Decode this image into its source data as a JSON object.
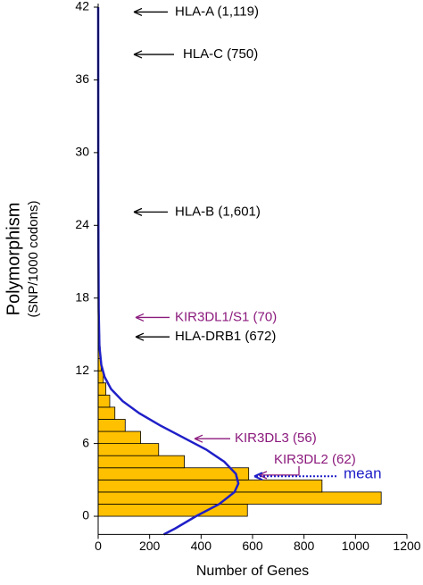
{
  "chart_data": {
    "type": "histogram",
    "orientation": "horizontal",
    "ylabel": "Polymorphism",
    "ylabel_sub": "(SNP/1000 codons)",
    "xlabel": "Number of Genes",
    "bins": [
      0,
      1,
      2,
      3,
      4,
      5,
      6,
      7,
      8,
      9,
      10,
      11,
      12,
      13,
      14,
      15,
      16,
      17,
      18,
      19,
      20,
      21,
      22,
      23,
      24,
      25,
      26,
      27
    ],
    "counts": [
      580,
      1100,
      870,
      585,
      335,
      235,
      165,
      105,
      65,
      45,
      30,
      20,
      12,
      8,
      6,
      5,
      4,
      3,
      3,
      2,
      2,
      2,
      1,
      1,
      1,
      1,
      1
    ],
    "color": "#ffc000",
    "edgecolor": "#000000",
    "curve": {
      "color": "#1f1fc8",
      "y": [
        -1.5,
        -1,
        0,
        1,
        2,
        2.7,
        3.5,
        4.5,
        5.5,
        6.5,
        7.5,
        8.5,
        9.5,
        10.5,
        11.5,
        12.5,
        14,
        17,
        22,
        30,
        42
      ],
      "x": [
        255,
        300,
        380,
        470,
        530,
        545,
        535,
        490,
        420,
        330,
        240,
        160,
        95,
        50,
        25,
        12,
        5,
        2,
        1,
        0.5,
        0
      ]
    },
    "xlim": [
      0,
      1200
    ],
    "xticks": [
      0,
      200,
      400,
      600,
      800,
      1000,
      1200
    ],
    "ylim": [
      -1.5,
      42
    ],
    "yticks": [
      0,
      6,
      12,
      18,
      24,
      30,
      36,
      42
    ],
    "annotations": [
      {
        "text": "HLA-A (1,119)",
        "y": 41.6,
        "color": "#000000"
      },
      {
        "text": "HLA-C (750)",
        "y": 38.1,
        "color": "#000000"
      },
      {
        "text": "HLA-B (1,601)",
        "y": 25.1,
        "color": "#000000"
      },
      {
        "text": "KIR3DL1/S1 (70)",
        "y": 16.4,
        "color": "#8b1a7d"
      },
      {
        "text": "HLA-DRB1 (672)",
        "y": 14.8,
        "color": "#000000"
      },
      {
        "text": "KIR3DL3 (56)",
        "y": 6.4,
        "color": "#8b1a7d"
      },
      {
        "text": "KIR3DL2 (62)",
        "y": 3.4,
        "color": "#8b1a7d"
      },
      {
        "text": "mean",
        "y": 3.3,
        "color": "#1f1fc8"
      }
    ]
  }
}
